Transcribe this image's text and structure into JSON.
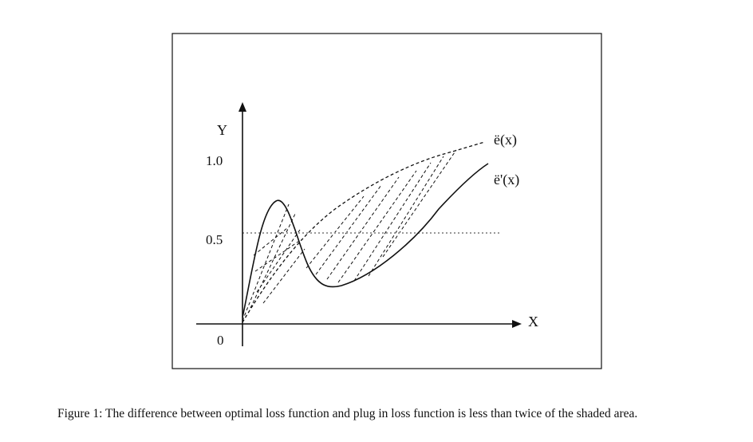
{
  "figure": {
    "axis_labels": {
      "y": "Y",
      "x": "X"
    },
    "tick_labels": {
      "top": "1.0",
      "middle": "0.5",
      "origin": "0"
    },
    "curve_labels": {
      "dashed": "ë(x)",
      "solid": "ë'(x)"
    },
    "caption": "Figure 1: The difference between optimal loss function and plug in loss function is less than twice of the shaded area."
  }
}
